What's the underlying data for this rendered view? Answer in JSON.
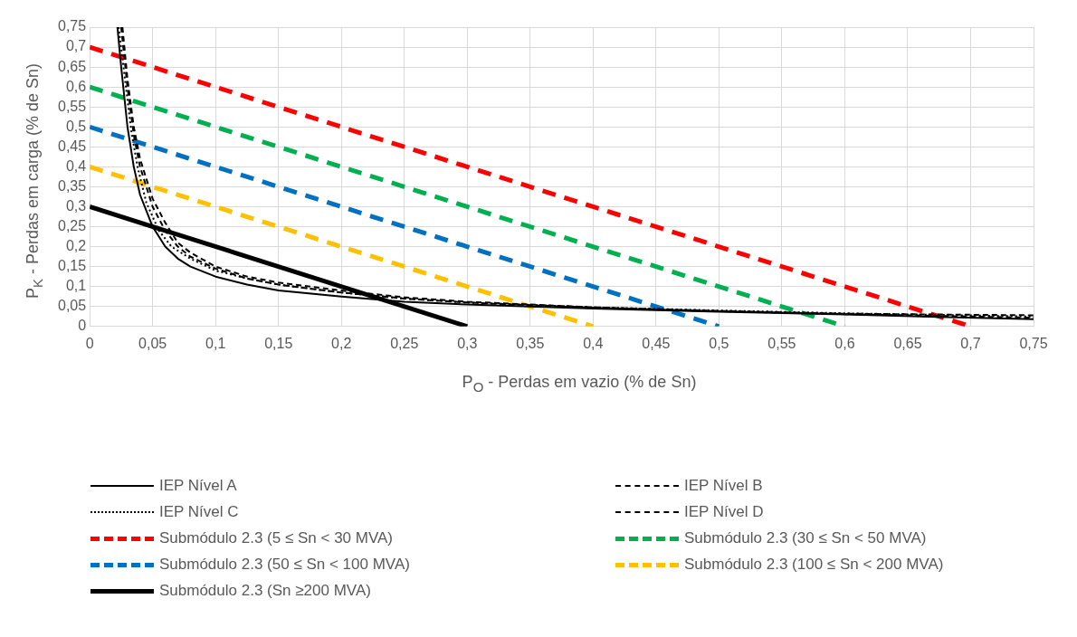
{
  "chart_data": {
    "type": "line",
    "xlabel": "P$_{O}$ - Perdas em vazio (% de Sn)",
    "ylabel": "P$_{K}$ - Perdas em carga (% de Sn)",
    "xlim": [
      0,
      0.75
    ],
    "xticks": [
      0,
      {
        "value": 0.05,
        "label": "0,05"
      },
      {
        "value": 0.1,
        "label": "0,1"
      },
      {
        "value": 0.15,
        "label": "0,15"
      },
      {
        "value": 0.2,
        "label": "0,2"
      },
      {
        "value": 0.25,
        "label": "0,25"
      },
      {
        "value": 0.3,
        "label": "0,3"
      },
      {
        "value": 0.35,
        "label": "0,35"
      },
      {
        "value": 0.4,
        "label": "0,4"
      },
      {
        "value": 0.45,
        "label": "0,45"
      },
      {
        "value": 0.5,
        "label": "0,5"
      },
      {
        "value": 0.55,
        "label": "0,55"
      },
      {
        "value": 0.6,
        "label": "0,6"
      },
      {
        "value": 0.65,
        "label": "0,65"
      },
      {
        "value": 0.7,
        "label": "0,7"
      },
      {
        "value": 0.75,
        "label": "0,75"
      }
    ],
    "ylim": [
      0,
      0.75
    ],
    "yticks": [
      0,
      {
        "value": 0.05,
        "label": "0,05"
      },
      {
        "value": 0.1,
        "label": "0,1"
      },
      {
        "value": 0.15,
        "label": "0,15"
      },
      {
        "value": 0.2,
        "label": "0,2"
      },
      {
        "value": 0.25,
        "label": "0,25"
      },
      {
        "value": 0.3,
        "label": "0,3"
      },
      {
        "value": 0.35,
        "label": "0,35"
      },
      {
        "value": 0.4,
        "label": "0,4"
      },
      {
        "value": 0.45,
        "label": "0,45"
      },
      {
        "value": 0.5,
        "label": "0,5"
      },
      {
        "value": 0.55,
        "label": "0,55"
      },
      {
        "value": 0.6,
        "label": "0,6"
      },
      {
        "value": 0.65,
        "label": "0,65"
      },
      {
        "value": 0.7,
        "label": "0,7"
      },
      {
        "value": 0.75,
        "label": "0,75"
      }
    ],
    "grid": true,
    "legend": "bottom",
    "marker": "none",
    "series": [
      {
        "name": "IEP Nível A",
        "color": "#000000",
        "line_style": "solid",
        "x": [
          0.022,
          0.025,
          0.03,
          0.035,
          0.04,
          0.05,
          0.06,
          0.07,
          0.08,
          0.1,
          0.125,
          0.15,
          0.2,
          0.25,
          0.3,
          0.4,
          0.5,
          0.6,
          0.75
        ],
        "values": [
          0.75,
          0.65,
          0.5,
          0.4,
          0.33,
          0.25,
          0.2,
          0.17,
          0.15,
          0.125,
          0.105,
          0.09,
          0.075,
          0.062,
          0.055,
          0.045,
          0.037,
          0.03,
          0.018
        ]
      },
      {
        "name": "IEP Nível B",
        "color": "#000000",
        "line_style": "dashed",
        "x": [
          0.025,
          0.03,
          0.035,
          0.04,
          0.05,
          0.06,
          0.07,
          0.08,
          0.1,
          0.125,
          0.15,
          0.2,
          0.25,
          0.3,
          0.4,
          0.5,
          0.6,
          0.75
        ],
        "values": [
          0.75,
          0.6,
          0.48,
          0.4,
          0.3,
          0.24,
          0.2,
          0.175,
          0.145,
          0.12,
          0.105,
          0.085,
          0.07,
          0.06,
          0.047,
          0.038,
          0.031,
          0.022
        ]
      },
      {
        "name": "IEP Nível C",
        "color": "#000000",
        "line_style": "dotted",
        "x": [
          0.023,
          0.028,
          0.033,
          0.038,
          0.045,
          0.055,
          0.065,
          0.08,
          0.1,
          0.125,
          0.15,
          0.2,
          0.25,
          0.3,
          0.4,
          0.5,
          0.6,
          0.75
        ],
        "values": [
          0.75,
          0.62,
          0.49,
          0.4,
          0.31,
          0.24,
          0.2,
          0.17,
          0.14,
          0.12,
          0.105,
          0.085,
          0.07,
          0.06,
          0.048,
          0.04,
          0.033,
          0.025
        ]
      },
      {
        "name": "IEP Nível D",
        "color": "#000000",
        "line_style": "dashed",
        "x": [
          0.026,
          0.03,
          0.035,
          0.04,
          0.05,
          0.06,
          0.07,
          0.08,
          0.1,
          0.125,
          0.15,
          0.2,
          0.25,
          0.3,
          0.4,
          0.5,
          0.6,
          0.75
        ],
        "values": [
          0.75,
          0.62,
          0.5,
          0.42,
          0.32,
          0.26,
          0.21,
          0.185,
          0.15,
          0.125,
          0.11,
          0.09,
          0.073,
          0.062,
          0.048,
          0.039,
          0.032,
          0.028
        ]
      },
      {
        "name": "Submódulo 2.3 (5 ≤ Sn < 30 MVA)",
        "color": "#ff0000",
        "line_style": "dashed",
        "x": [
          0,
          0.7
        ],
        "values": [
          0.7,
          0
        ]
      },
      {
        "name": "Submódulo 2.3 (30 ≤ Sn < 50 MVA)",
        "color": "#00b050",
        "line_style": "dashed",
        "x": [
          0,
          0.6
        ],
        "values": [
          0.6,
          0
        ]
      },
      {
        "name": "Submódulo 2.3 (50 ≤ Sn < 100 MVA)",
        "color": "#0070c0",
        "line_style": "dashed",
        "x": [
          0,
          0.5
        ],
        "values": [
          0.5,
          0
        ]
      },
      {
        "name": "Submódulo 2.3 (100 ≤ Sn < 200 MVA)",
        "color": "#ffc000",
        "line_style": "dashed",
        "x": [
          0,
          0.4
        ],
        "values": [
          0.4,
          0
        ]
      },
      {
        "name": "Submódulo 2.3 (Sn ≥200 MVA)",
        "color": "#000000",
        "line_style": "solid",
        "x": [
          0,
          0.3
        ],
        "values": [
          0.3,
          0
        ]
      }
    ]
  }
}
